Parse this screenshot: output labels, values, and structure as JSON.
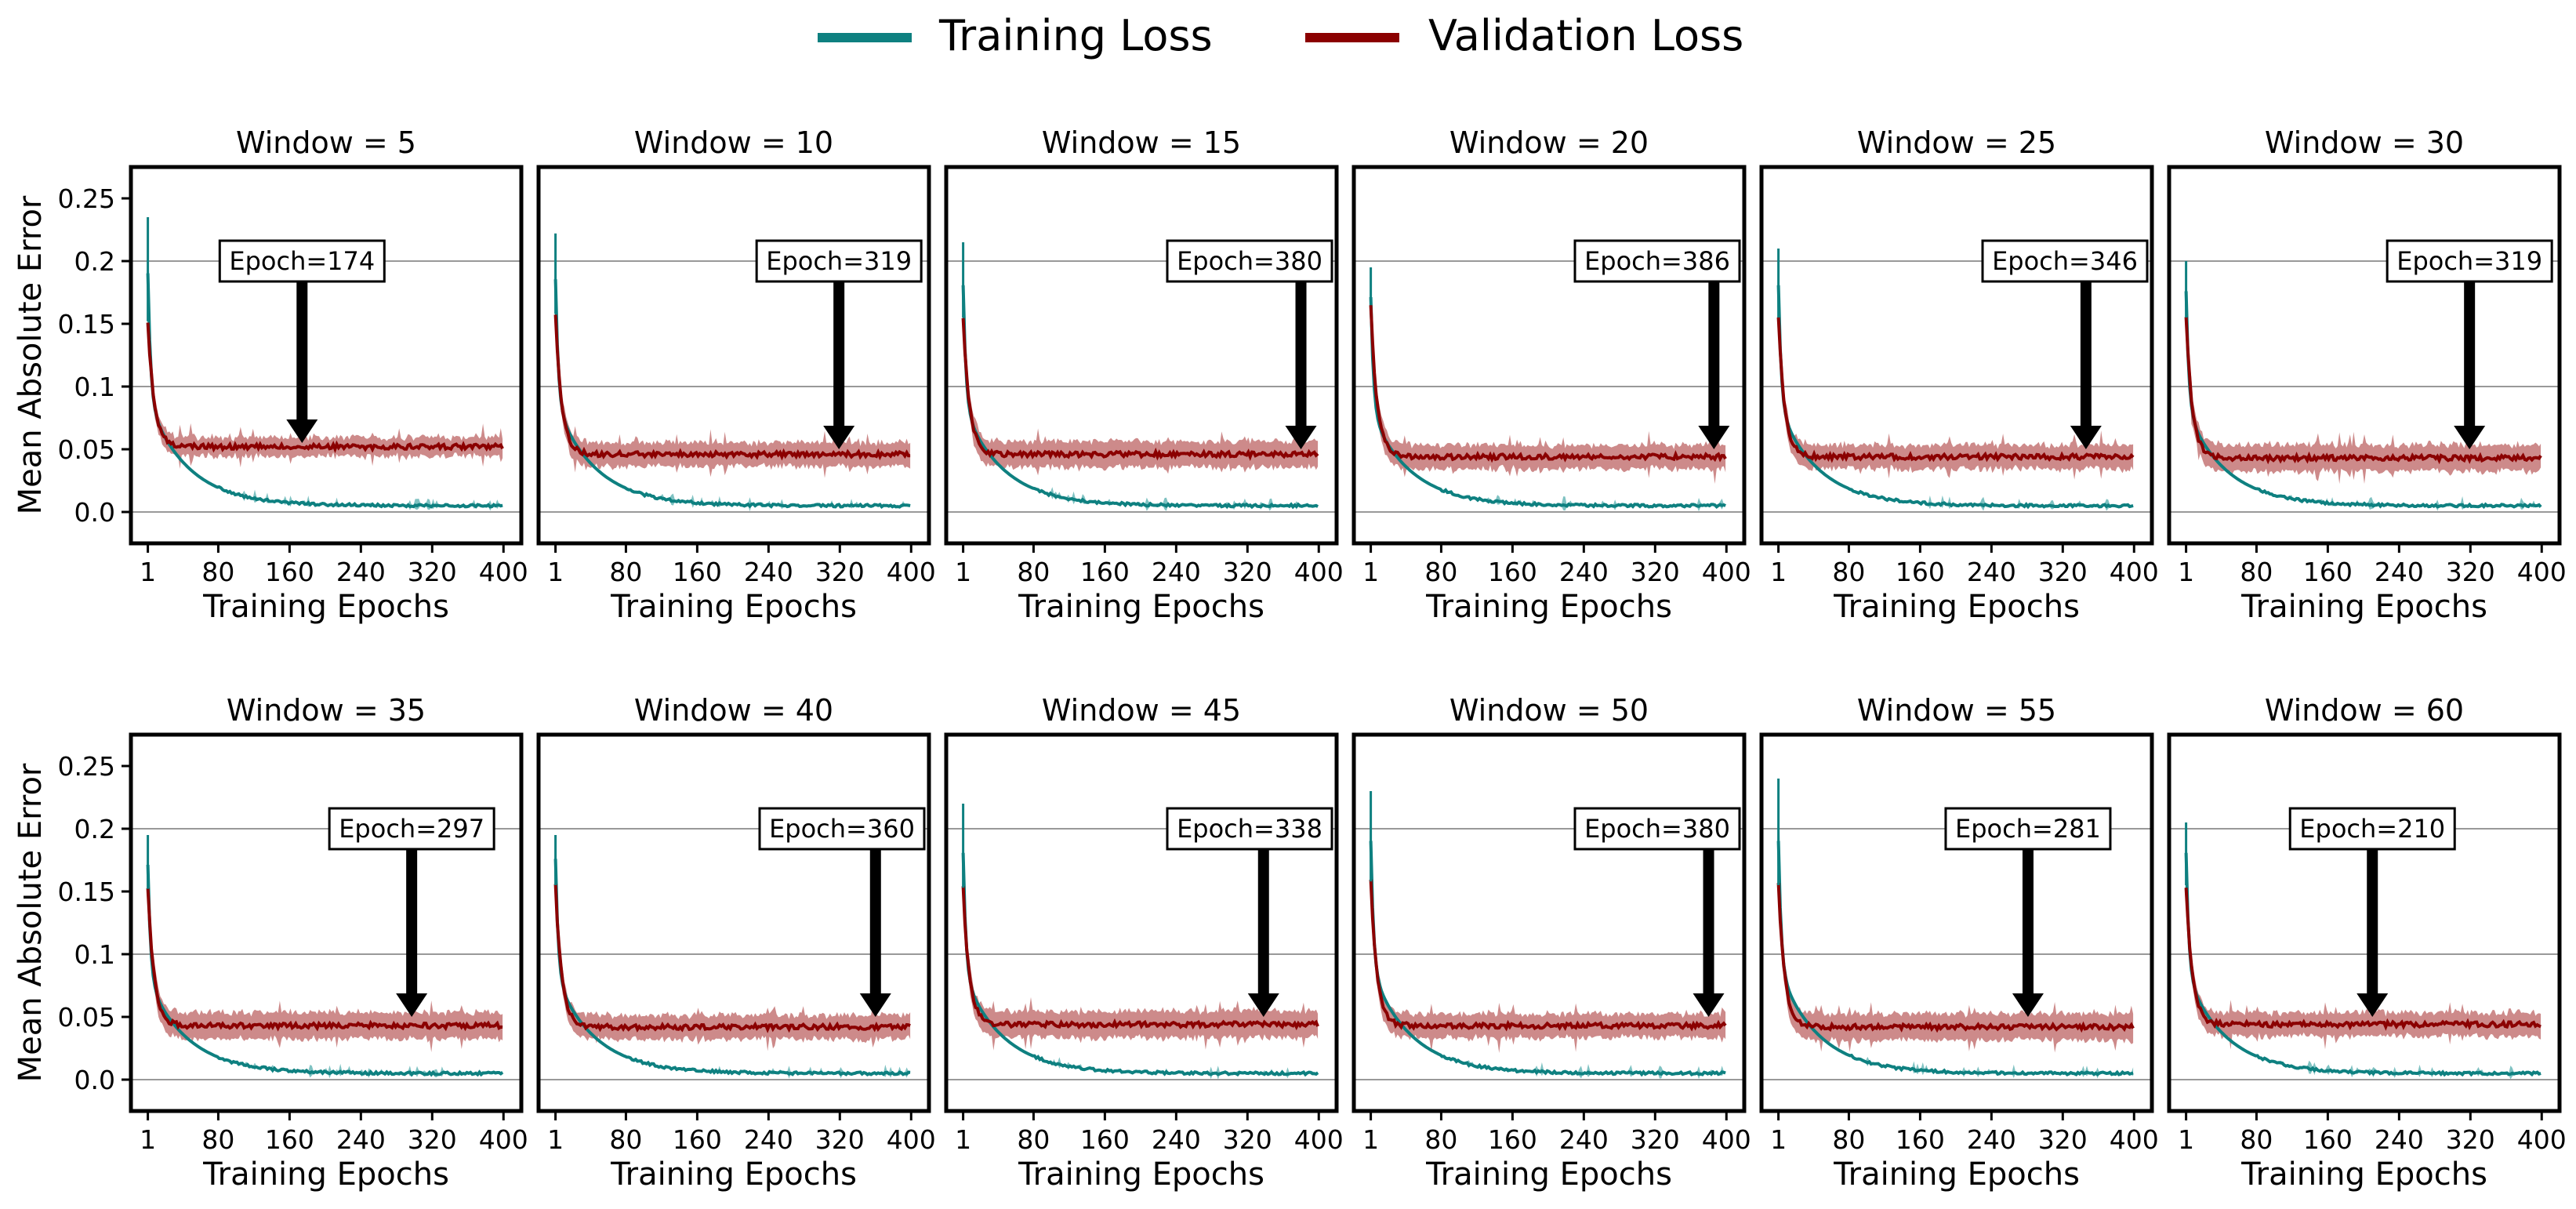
{
  "legend": {
    "position": "top-center",
    "entries": [
      {
        "label": "Training Loss",
        "color": "#0e8080"
      },
      {
        "label": "Validation Loss",
        "color": "#8b0000"
      }
    ]
  },
  "colors": {
    "training": "#0e8080",
    "training_band": "#5fb3b3",
    "validation": "#8b0000",
    "validation_band": "#c47575",
    "gridline": "#999999",
    "arrow": "#000000"
  },
  "chart_data": [
    {
      "type": "line",
      "title": "Window = 5",
      "xlabel": "Training Epochs",
      "ylabel": "Mean Absolute Error",
      "xlim": [
        -18,
        420
      ],
      "ylim": [
        -0.025,
        0.275
      ],
      "xticks": [
        "1",
        "80",
        "160",
        "240",
        "320",
        "400"
      ],
      "yticks": [
        "0.0",
        "0.05",
        "0.1",
        "0.15",
        "0.2",
        "0.25"
      ],
      "grid_y": [
        0,
        0.1,
        0.2
      ],
      "annotation": {
        "text": "Epoch=174",
        "epoch": 174,
        "arrow_tip_y": 0.055,
        "label_y": 0.2
      },
      "series": [
        {
          "name": "Training Loss",
          "start": 0.2,
          "peak": 0.235,
          "final": 0.005
        },
        {
          "name": "Validation Loss",
          "start": 0.152,
          "final": 0.052,
          "band": 0.006
        }
      ]
    },
    {
      "type": "line",
      "title": "Window = 10",
      "xlabel": "Training Epochs",
      "ylabel": "Mean Absolute Error",
      "xlim": [
        -18,
        420
      ],
      "ylim": [
        -0.025,
        0.275
      ],
      "xticks": [
        "1",
        "80",
        "160",
        "240",
        "320",
        "400"
      ],
      "yticks": [
        "0.0",
        "0.05",
        "0.1",
        "0.15",
        "0.2",
        "0.25"
      ],
      "grid_y": [
        0,
        0.1,
        0.2
      ],
      "annotation": {
        "text": "Epoch=319",
        "epoch": 319,
        "arrow_tip_y": 0.05,
        "label_y": 0.2
      },
      "series": [
        {
          "name": "Training Loss",
          "start": 0.195,
          "peak": 0.222,
          "final": 0.005
        },
        {
          "name": "Validation Loss",
          "start": 0.158,
          "final": 0.046,
          "band": 0.008
        }
      ]
    },
    {
      "type": "line",
      "title": "Window = 15",
      "xlabel": "Training Epochs",
      "ylabel": "Mean Absolute Error",
      "xlim": [
        -18,
        420
      ],
      "ylim": [
        -0.025,
        0.275
      ],
      "xticks": [
        "1",
        "80",
        "160",
        "240",
        "320",
        "400"
      ],
      "yticks": [
        "0.0",
        "0.05",
        "0.1",
        "0.15",
        "0.2",
        "0.25"
      ],
      "grid_y": [
        0,
        0.1,
        0.2
      ],
      "annotation": {
        "text": "Epoch=380",
        "epoch": 380,
        "arrow_tip_y": 0.05,
        "label_y": 0.2
      },
      "series": [
        {
          "name": "Training Loss",
          "start": 0.19,
          "peak": 0.215,
          "final": 0.005
        },
        {
          "name": "Validation Loss",
          "start": 0.155,
          "final": 0.046,
          "band": 0.009
        }
      ]
    },
    {
      "type": "line",
      "title": "Window = 20",
      "xlabel": "Training Epochs",
      "ylabel": "Mean Absolute Error",
      "xlim": [
        -18,
        420
      ],
      "ylim": [
        -0.025,
        0.275
      ],
      "xticks": [
        "1",
        "80",
        "160",
        "240",
        "320",
        "400"
      ],
      "yticks": [
        "0.0",
        "0.05",
        "0.1",
        "0.15",
        "0.2",
        "0.25"
      ],
      "grid_y": [
        0,
        0.1,
        0.2
      ],
      "annotation": {
        "text": "Epoch=386",
        "epoch": 386,
        "arrow_tip_y": 0.05,
        "label_y": 0.2
      },
      "series": [
        {
          "name": "Training Loss",
          "start": 0.18,
          "peak": 0.195,
          "final": 0.005
        },
        {
          "name": "Validation Loss",
          "start": 0.165,
          "final": 0.044,
          "band": 0.008
        }
      ]
    },
    {
      "type": "line",
      "title": "Window = 25",
      "xlabel": "Training Epochs",
      "ylabel": "Mean Absolute Error",
      "xlim": [
        -18,
        420
      ],
      "ylim": [
        -0.025,
        0.275
      ],
      "xticks": [
        "1",
        "80",
        "160",
        "240",
        "320",
        "400"
      ],
      "yticks": [
        "0.0",
        "0.05",
        "0.1",
        "0.15",
        "0.2",
        "0.25"
      ],
      "grid_y": [
        0,
        0.1,
        0.2
      ],
      "annotation": {
        "text": "Epoch=346",
        "epoch": 346,
        "arrow_tip_y": 0.05,
        "label_y": 0.2
      },
      "series": [
        {
          "name": "Training Loss",
          "start": 0.19,
          "peak": 0.21,
          "final": 0.005
        },
        {
          "name": "Validation Loss",
          "start": 0.155,
          "final": 0.044,
          "band": 0.008
        }
      ]
    },
    {
      "type": "line",
      "title": "Window = 30",
      "xlabel": "Training Epochs",
      "ylabel": "Mean Absolute Error",
      "xlim": [
        -18,
        420
      ],
      "ylim": [
        -0.025,
        0.275
      ],
      "xticks": [
        "1",
        "80",
        "160",
        "240",
        "320",
        "400"
      ],
      "yticks": [
        "0.0",
        "0.05",
        "0.1",
        "0.15",
        "0.2",
        "0.25"
      ],
      "grid_y": [
        0,
        0.1,
        0.2
      ],
      "annotation": {
        "text": "Epoch=319",
        "epoch": 319,
        "arrow_tip_y": 0.05,
        "label_y": 0.2
      },
      "series": [
        {
          "name": "Training Loss",
          "start": 0.185,
          "peak": 0.2,
          "final": 0.005
        },
        {
          "name": "Validation Loss",
          "start": 0.155,
          "final": 0.043,
          "band": 0.009
        }
      ]
    },
    {
      "type": "line",
      "title": "Window = 35",
      "xlabel": "Training Epochs",
      "ylabel": "Mean Absolute Error",
      "xlim": [
        -18,
        420
      ],
      "ylim": [
        -0.025,
        0.275
      ],
      "xticks": [
        "1",
        "80",
        "160",
        "240",
        "320",
        "400"
      ],
      "yticks": [
        "0.0",
        "0.05",
        "0.1",
        "0.15",
        "0.2",
        "0.25"
      ],
      "grid_y": [
        0,
        0.1,
        0.2
      ],
      "annotation": {
        "text": "Epoch=297",
        "epoch": 297,
        "arrow_tip_y": 0.05,
        "label_y": 0.2
      },
      "series": [
        {
          "name": "Training Loss",
          "start": 0.18,
          "peak": 0.195,
          "final": 0.005
        },
        {
          "name": "Validation Loss",
          "start": 0.152,
          "final": 0.043,
          "band": 0.009
        }
      ]
    },
    {
      "type": "line",
      "title": "Window = 40",
      "xlabel": "Training Epochs",
      "ylabel": "Mean Absolute Error",
      "xlim": [
        -18,
        420
      ],
      "ylim": [
        -0.025,
        0.275
      ],
      "xticks": [
        "1",
        "80",
        "160",
        "240",
        "320",
        "400"
      ],
      "yticks": [
        "0.0",
        "0.05",
        "0.1",
        "0.15",
        "0.2",
        "0.25"
      ],
      "grid_y": [
        0,
        0.1,
        0.2
      ],
      "annotation": {
        "text": "Epoch=360",
        "epoch": 360,
        "arrow_tip_y": 0.05,
        "label_y": 0.2
      },
      "series": [
        {
          "name": "Training Loss",
          "start": 0.185,
          "peak": 0.195,
          "final": 0.005
        },
        {
          "name": "Validation Loss",
          "start": 0.155,
          "final": 0.042,
          "band": 0.008
        }
      ]
    },
    {
      "type": "line",
      "title": "Window = 45",
      "xlabel": "Training Epochs",
      "ylabel": "Mean Absolute Error",
      "xlim": [
        -18,
        420
      ],
      "ylim": [
        -0.025,
        0.275
      ],
      "xticks": [
        "1",
        "80",
        "160",
        "240",
        "320",
        "400"
      ],
      "yticks": [
        "0.0",
        "0.05",
        "0.1",
        "0.15",
        "0.2",
        "0.25"
      ],
      "grid_y": [
        0,
        0.1,
        0.2
      ],
      "annotation": {
        "text": "Epoch=338",
        "epoch": 338,
        "arrow_tip_y": 0.05,
        "label_y": 0.2
      },
      "series": [
        {
          "name": "Training Loss",
          "start": 0.19,
          "peak": 0.22,
          "final": 0.005
        },
        {
          "name": "Validation Loss",
          "start": 0.153,
          "final": 0.044,
          "band": 0.009
        }
      ]
    },
    {
      "type": "line",
      "title": "Window = 50",
      "xlabel": "Training Epochs",
      "ylabel": "Mean Absolute Error",
      "xlim": [
        -18,
        420
      ],
      "ylim": [
        -0.025,
        0.275
      ],
      "xticks": [
        "1",
        "80",
        "160",
        "240",
        "320",
        "400"
      ],
      "yticks": [
        "0.0",
        "0.05",
        "0.1",
        "0.15",
        "0.2",
        "0.25"
      ],
      "grid_y": [
        0,
        0.1,
        0.2
      ],
      "annotation": {
        "text": "Epoch=380",
        "epoch": 380,
        "arrow_tip_y": 0.05,
        "label_y": 0.2
      },
      "series": [
        {
          "name": "Training Loss",
          "start": 0.2,
          "peak": 0.23,
          "final": 0.005
        },
        {
          "name": "Validation Loss",
          "start": 0.158,
          "final": 0.043,
          "band": 0.008
        }
      ]
    },
    {
      "type": "line",
      "title": "Window = 55",
      "xlabel": "Training Epochs",
      "ylabel": "Mean Absolute Error",
      "xlim": [
        -18,
        420
      ],
      "ylim": [
        -0.025,
        0.275
      ],
      "xticks": [
        "1",
        "80",
        "160",
        "240",
        "320",
        "400"
      ],
      "yticks": [
        "0.0",
        "0.05",
        "0.1",
        "0.15",
        "0.2",
        "0.25"
      ],
      "grid_y": [
        0,
        0.1,
        0.2
      ],
      "annotation": {
        "text": "Epoch=281",
        "epoch": 281,
        "arrow_tip_y": 0.05,
        "label_y": 0.2
      },
      "series": [
        {
          "name": "Training Loss",
          "start": 0.2,
          "peak": 0.24,
          "final": 0.005
        },
        {
          "name": "Validation Loss",
          "start": 0.155,
          "final": 0.042,
          "band": 0.009
        }
      ]
    },
    {
      "type": "line",
      "title": "Window = 60",
      "xlabel": "Training Epochs",
      "ylabel": "Mean Absolute Error",
      "xlim": [
        -18,
        420
      ],
      "ylim": [
        -0.025,
        0.275
      ],
      "xticks": [
        "1",
        "80",
        "160",
        "240",
        "320",
        "400"
      ],
      "yticks": [
        "0.0",
        "0.05",
        "0.1",
        "0.15",
        "0.2",
        "0.25"
      ],
      "grid_y": [
        0,
        0.1,
        0.2
      ],
      "annotation": {
        "text": "Epoch=210",
        "epoch": 210,
        "arrow_tip_y": 0.05,
        "label_y": 0.2
      },
      "series": [
        {
          "name": "Training Loss",
          "start": 0.19,
          "peak": 0.205,
          "final": 0.005
        },
        {
          "name": "Validation Loss",
          "start": 0.155,
          "final": 0.044,
          "band": 0.008
        }
      ]
    }
  ]
}
